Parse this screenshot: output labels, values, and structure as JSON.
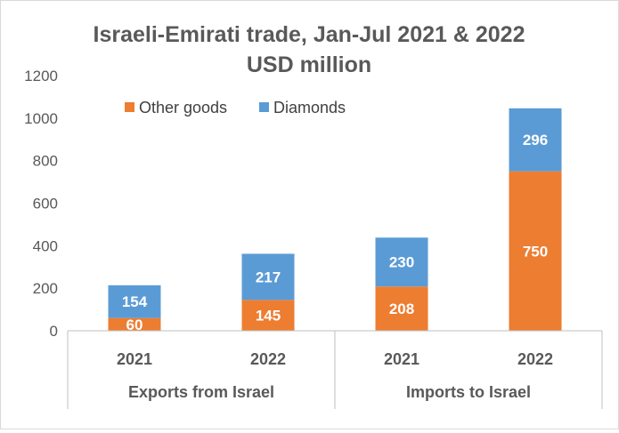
{
  "chart_data": {
    "type": "bar",
    "stacked": true,
    "title": "Israeli-Emirati trade, Jan-Jul 2021 & 2022",
    "subtitle": "USD million",
    "xlabel": "",
    "ylabel": "",
    "ylim": [
      0,
      1200
    ],
    "yticks": [
      0,
      200,
      400,
      600,
      800,
      1000,
      1200
    ],
    "grid": false,
    "legend": "top-left",
    "categories": [
      "2021",
      "2022",
      "2021",
      "2022"
    ],
    "groups": [
      {
        "label": "Exports from Israel",
        "categories": [
          "2021",
          "2022"
        ]
      },
      {
        "label": "Imports to Israel",
        "categories": [
          "2021",
          "2022"
        ]
      }
    ],
    "series": [
      {
        "name": "Other goods",
        "color": "#ED7D31",
        "values": [
          60,
          145,
          208,
          750
        ]
      },
      {
        "name": "Diamonds",
        "color": "#5B9BD5",
        "values": [
          154,
          217,
          230,
          296
        ]
      }
    ]
  }
}
